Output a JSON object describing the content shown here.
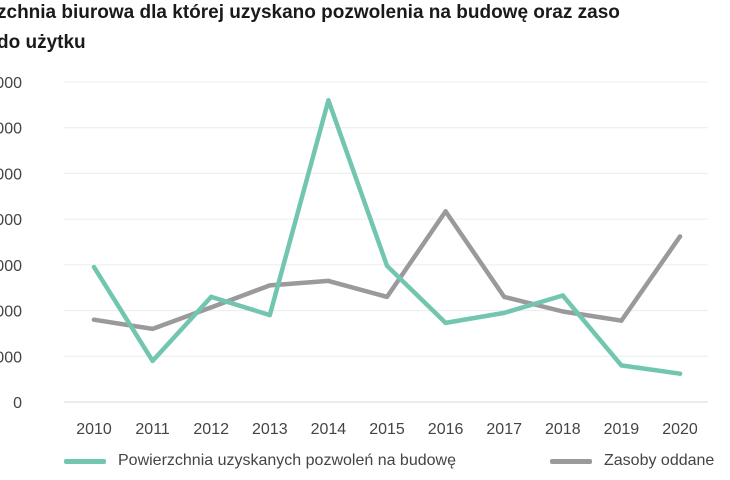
{
  "title": {
    "line1": "zchnia biurowa dla której uzyskano pozwolenia na budowę oraz zaso",
    "line2": " do użytku"
  },
  "chart_data": {
    "type": "line",
    "categories": [
      "2010",
      "2011",
      "2012",
      "2013",
      "2014",
      "2015",
      "2016",
      "2017",
      "2018",
      "2019",
      "2020"
    ],
    "y_tick_labels": [
      "0",
      "000",
      "000",
      "000",
      "000",
      "000",
      "000",
      "000"
    ],
    "ylim": [
      0,
      7
    ],
    "grid": true,
    "legend_position": "bottom",
    "series": [
      {
        "name": "Powierzchnia uzyskanych pozwoleń na budowę",
        "color": "#72c6b0",
        "values": [
          2.95,
          0.9,
          2.3,
          1.9,
          6.6,
          2.98,
          1.73,
          1.95,
          2.33,
          0.8,
          0.62
        ]
      },
      {
        "name": "Zasoby oddane",
        "color": "#9a9a9c",
        "values": [
          1.8,
          1.6,
          2.07,
          2.55,
          2.65,
          2.3,
          4.17,
          2.3,
          1.98,
          1.78,
          3.62
        ]
      }
    ]
  }
}
